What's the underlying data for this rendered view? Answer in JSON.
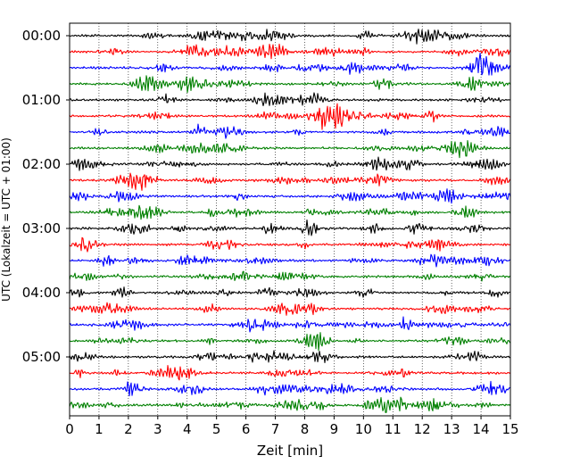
{
  "chart_data": {
    "type": "line",
    "title": "",
    "xlabel": "Zeit  [min]",
    "ylabel": "UTC (Lokalzeit = UTC + 01:00)",
    "xlim": [
      0,
      15
    ],
    "x_ticks": [
      "0",
      "1",
      "2",
      "3",
      "4",
      "5",
      "6",
      "7",
      "8",
      "9",
      "10",
      "11",
      "12",
      "13",
      "14",
      "15"
    ],
    "y_tick_labels": [
      "00:00",
      "01:00",
      "02:00",
      "03:00",
      "04:00",
      "05:00"
    ],
    "rows_per_hour": 4,
    "row_count": 24,
    "row_minutes": 15,
    "row_colors": [
      "#000000",
      "#ff0000",
      "#0000ff",
      "#008000"
    ],
    "grid_x": true,
    "legend": "none"
  }
}
